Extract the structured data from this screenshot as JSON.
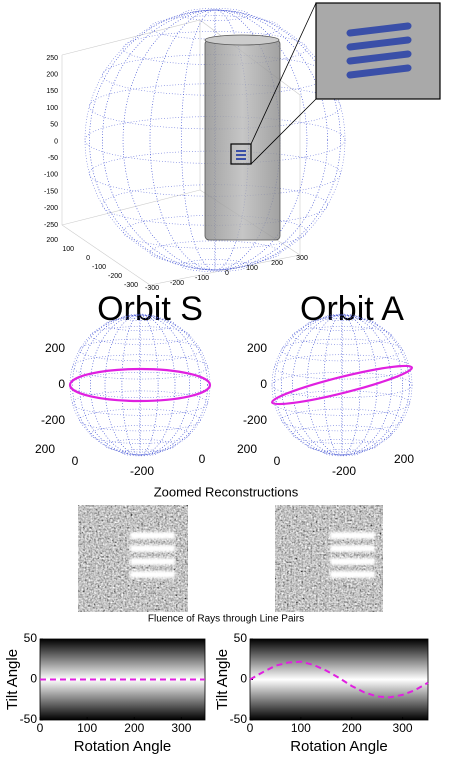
{
  "top_plot": {
    "z_ticks": [
      250,
      200,
      150,
      100,
      50,
      0,
      -50,
      -100,
      -150,
      -200,
      -250
    ],
    "x_ticks": [
      200,
      100,
      0,
      -100,
      -200,
      -300
    ],
    "y_ticks": [
      -300,
      -200,
      -100,
      0,
      100,
      200,
      300
    ]
  },
  "orbit_s": {
    "title": "Orbit S",
    "z_ticks": [
      200,
      0,
      -200
    ],
    "y_ticks": [
      200,
      0
    ],
    "x_ticks": [
      -200,
      0
    ]
  },
  "orbit_a": {
    "title": "Orbit A",
    "z_ticks": [
      200,
      0,
      -200
    ],
    "y_ticks": [
      200,
      0
    ],
    "x_ticks": [
      -200,
      200
    ]
  },
  "zoomed_title": "Zoomed Reconstructions",
  "fluence_title": "Fluence of Rays through Line Pairs",
  "chart_data": [
    {
      "type": "line",
      "xlabel": "Rotation Angle",
      "ylabel": "Tilt Angle",
      "x": [
        0,
        25,
        50,
        75,
        100,
        125,
        150,
        175,
        200,
        225,
        250,
        275,
        300,
        325,
        350
      ],
      "series": [
        {
          "color": "#e020e0",
          "values": [
            0,
            0,
            0,
            0,
            0,
            0,
            0,
            0,
            0,
            0,
            0,
            0,
            0,
            0,
            0
          ]
        }
      ],
      "xlim": [
        0,
        350
      ],
      "ylim": [
        -50,
        50
      ],
      "xticks": [
        0,
        100,
        200,
        300
      ],
      "yticks": [
        50,
        0,
        -50
      ]
    },
    {
      "type": "line",
      "xlabel": "Rotation Angle",
      "ylabel": "Tilt Angle",
      "x": [
        0,
        25,
        50,
        75,
        100,
        125,
        150,
        175,
        200,
        225,
        250,
        275,
        300,
        325,
        350
      ],
      "series": [
        {
          "color": "#e020e0",
          "values": [
            0,
            9,
            17,
            21,
            22,
            18,
            11,
            2,
            -8,
            -16,
            -21,
            -22,
            -19,
            -13,
            -4
          ]
        }
      ],
      "xlim": [
        0,
        350
      ],
      "ylim": [
        -50,
        50
      ],
      "xticks": [
        0,
        100,
        200,
        300
      ],
      "yticks": [
        50,
        0,
        -50
      ]
    }
  ]
}
